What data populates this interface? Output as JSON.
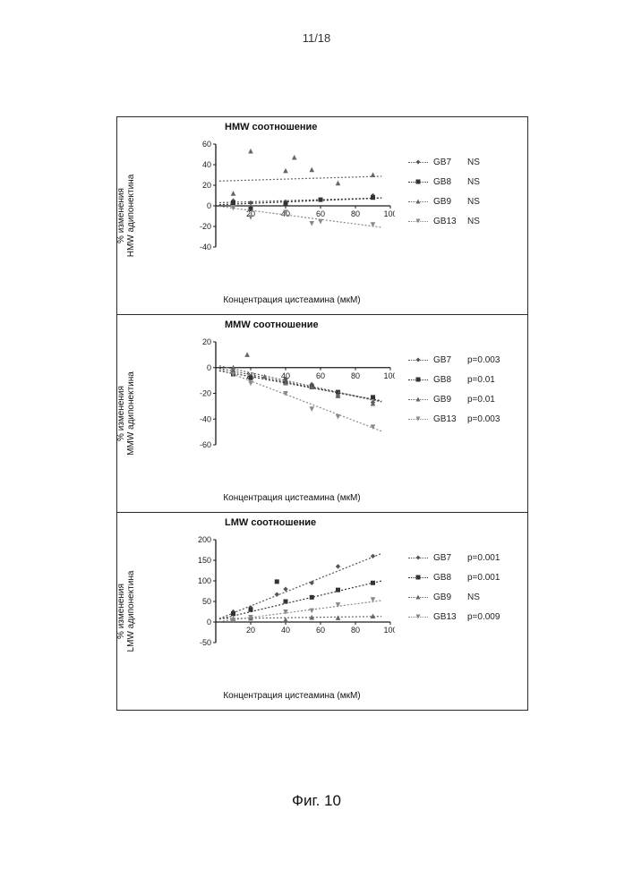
{
  "page_number": "11/18",
  "caption": "Фиг. 10",
  "panels": [
    {
      "id": "hmw",
      "title": "HMW соотношение",
      "ylabel": "% изменения\nHMW адипонектина",
      "xlabel": "Концентрация цистеамина (мкМ)",
      "xlim": [
        0,
        100
      ],
      "ylim": [
        -40,
        60
      ],
      "ytick_step": 20,
      "xtick_step": 20,
      "legend": [
        {
          "label": "GB7",
          "stat": "NS",
          "color": "#555555",
          "marker": "diamond"
        },
        {
          "label": "GB8",
          "stat": "NS",
          "color": "#333333",
          "marker": "square"
        },
        {
          "label": "GB9",
          "stat": "NS",
          "color": "#666666",
          "marker": "triangle"
        },
        {
          "label": "GB13",
          "stat": "NS",
          "color": "#888888",
          "marker": "down-triangle"
        }
      ],
      "series": [
        {
          "color": "#555555",
          "marker": "diamond",
          "slope": 0.05,
          "intercept": 3,
          "points": [
            [
              10,
              5
            ],
            [
              20,
              3
            ],
            [
              40,
              4
            ],
            [
              60,
              6
            ],
            [
              90,
              10
            ]
          ]
        },
        {
          "color": "#333333",
          "marker": "square",
          "slope": 0.07,
          "intercept": 1,
          "points": [
            [
              10,
              3
            ],
            [
              20,
              -3
            ],
            [
              40,
              2
            ],
            [
              60,
              6
            ],
            [
              90,
              8
            ]
          ]
        },
        {
          "color": "#666666",
          "marker": "triangle",
          "slope": 0.05,
          "intercept": 24,
          "points": [
            [
              10,
              12
            ],
            [
              20,
              53
            ],
            [
              40,
              34
            ],
            [
              45,
              47
            ],
            [
              55,
              35
            ],
            [
              70,
              22
            ],
            [
              90,
              30
            ]
          ]
        },
        {
          "color": "#888888",
          "marker": "down-triangle",
          "slope": -0.22,
          "intercept": 0,
          "points": [
            [
              10,
              -2
            ],
            [
              20,
              -11
            ],
            [
              40,
              -6
            ],
            [
              55,
              -17
            ],
            [
              60,
              -15
            ],
            [
              90,
              -18
            ]
          ]
        }
      ]
    },
    {
      "id": "mmw",
      "title": "MMW соотношение",
      "ylabel": "% изменения\nMMW адипонектина",
      "xlabel": "Концентрация цистеамина (мкМ)",
      "xlim": [
        0,
        100
      ],
      "ylim": [
        -60,
        20
      ],
      "ytick_step": 20,
      "xtick_step": 20,
      "legend": [
        {
          "label": "GB7",
          "stat": "p=0.003",
          "color": "#555555",
          "marker": "diamond"
        },
        {
          "label": "GB8",
          "stat": "p=0.01",
          "color": "#333333",
          "marker": "square"
        },
        {
          "label": "GB9",
          "stat": "p=0.01",
          "color": "#666666",
          "marker": "triangle"
        },
        {
          "label": "GB13",
          "stat": "p=0.003",
          "color": "#888888",
          "marker": "down-triangle"
        }
      ],
      "series": [
        {
          "color": "#555555",
          "marker": "diamond",
          "slope": -0.28,
          "intercept": 0,
          "points": [
            [
              10,
              -3
            ],
            [
              20,
              -7
            ],
            [
              40,
              -9
            ],
            [
              55,
              -13
            ],
            [
              70,
              -22
            ],
            [
              90,
              -27
            ]
          ]
        },
        {
          "color": "#333333",
          "marker": "square",
          "slope": -0.25,
          "intercept": -2,
          "points": [
            [
              10,
              -5
            ],
            [
              20,
              -8
            ],
            [
              40,
              -12
            ],
            [
              55,
              -15
            ],
            [
              70,
              -19
            ],
            [
              90,
              -23
            ]
          ]
        },
        {
          "color": "#666666",
          "marker": "triangle",
          "slope": -0.3,
          "intercept": 2,
          "points": [
            [
              10,
              0
            ],
            [
              18,
              10
            ],
            [
              28,
              -7
            ],
            [
              40,
              -12
            ],
            [
              55,
              -15
            ],
            [
              70,
              -22
            ],
            [
              90,
              -28
            ]
          ]
        },
        {
          "color": "#888888",
          "marker": "down-triangle",
          "slope": -0.52,
          "intercept": 0,
          "points": [
            [
              10,
              -5
            ],
            [
              20,
              -12
            ],
            [
              40,
              -20
            ],
            [
              55,
              -32
            ],
            [
              70,
              -38
            ],
            [
              90,
              -46
            ]
          ]
        }
      ]
    },
    {
      "id": "lmw",
      "title": "LMW соотношение",
      "ylabel": "% изменения\nLMW адипонектина",
      "xlabel": "Концентрация цистеамина (мкМ)",
      "xlim": [
        0,
        100
      ],
      "ylim": [
        -50,
        200
      ],
      "ytick_step": 50,
      "xtick_step": 20,
      "legend": [
        {
          "label": "GB7",
          "stat": "p=0.001",
          "color": "#555555",
          "marker": "diamond"
        },
        {
          "label": "GB8",
          "stat": "p=0.001",
          "color": "#333333",
          "marker": "square"
        },
        {
          "label": "GB9",
          "stat": "NS",
          "color": "#666666",
          "marker": "triangle"
        },
        {
          "label": "GB13",
          "stat": "p=0.009",
          "color": "#888888",
          "marker": "down-triangle"
        }
      ],
      "series": [
        {
          "color": "#555555",
          "marker": "diamond",
          "slope": 1.7,
          "intercept": 5,
          "points": [
            [
              10,
              25
            ],
            [
              20,
              35
            ],
            [
              35,
              67
            ],
            [
              40,
              80
            ],
            [
              55,
              95
            ],
            [
              70,
              135
            ],
            [
              90,
              160
            ]
          ]
        },
        {
          "color": "#333333",
          "marker": "square",
          "slope": 1.0,
          "intercept": 5,
          "points": [
            [
              10,
              20
            ],
            [
              20,
              30
            ],
            [
              35,
              98
            ],
            [
              40,
              50
            ],
            [
              55,
              60
            ],
            [
              70,
              78
            ],
            [
              90,
              95
            ]
          ]
        },
        {
          "color": "#666666",
          "marker": "triangle",
          "slope": 0.06,
          "intercept": 8,
          "points": [
            [
              10,
              8
            ],
            [
              20,
              9
            ],
            [
              40,
              5
            ],
            [
              55,
              11
            ],
            [
              70,
              10
            ],
            [
              90,
              14
            ]
          ]
        },
        {
          "color": "#888888",
          "marker": "down-triangle",
          "slope": 0.55,
          "intercept": 0,
          "points": [
            [
              10,
              5
            ],
            [
              20,
              12
            ],
            [
              40,
              25
            ],
            [
              55,
              28
            ],
            [
              70,
              42
            ],
            [
              90,
              55
            ]
          ]
        }
      ]
    }
  ],
  "style": {
    "axis_color": "#1a1a1a",
    "tick_font_size": 9,
    "grid": false,
    "line_style": "dotted",
    "marker_size": 4
  }
}
